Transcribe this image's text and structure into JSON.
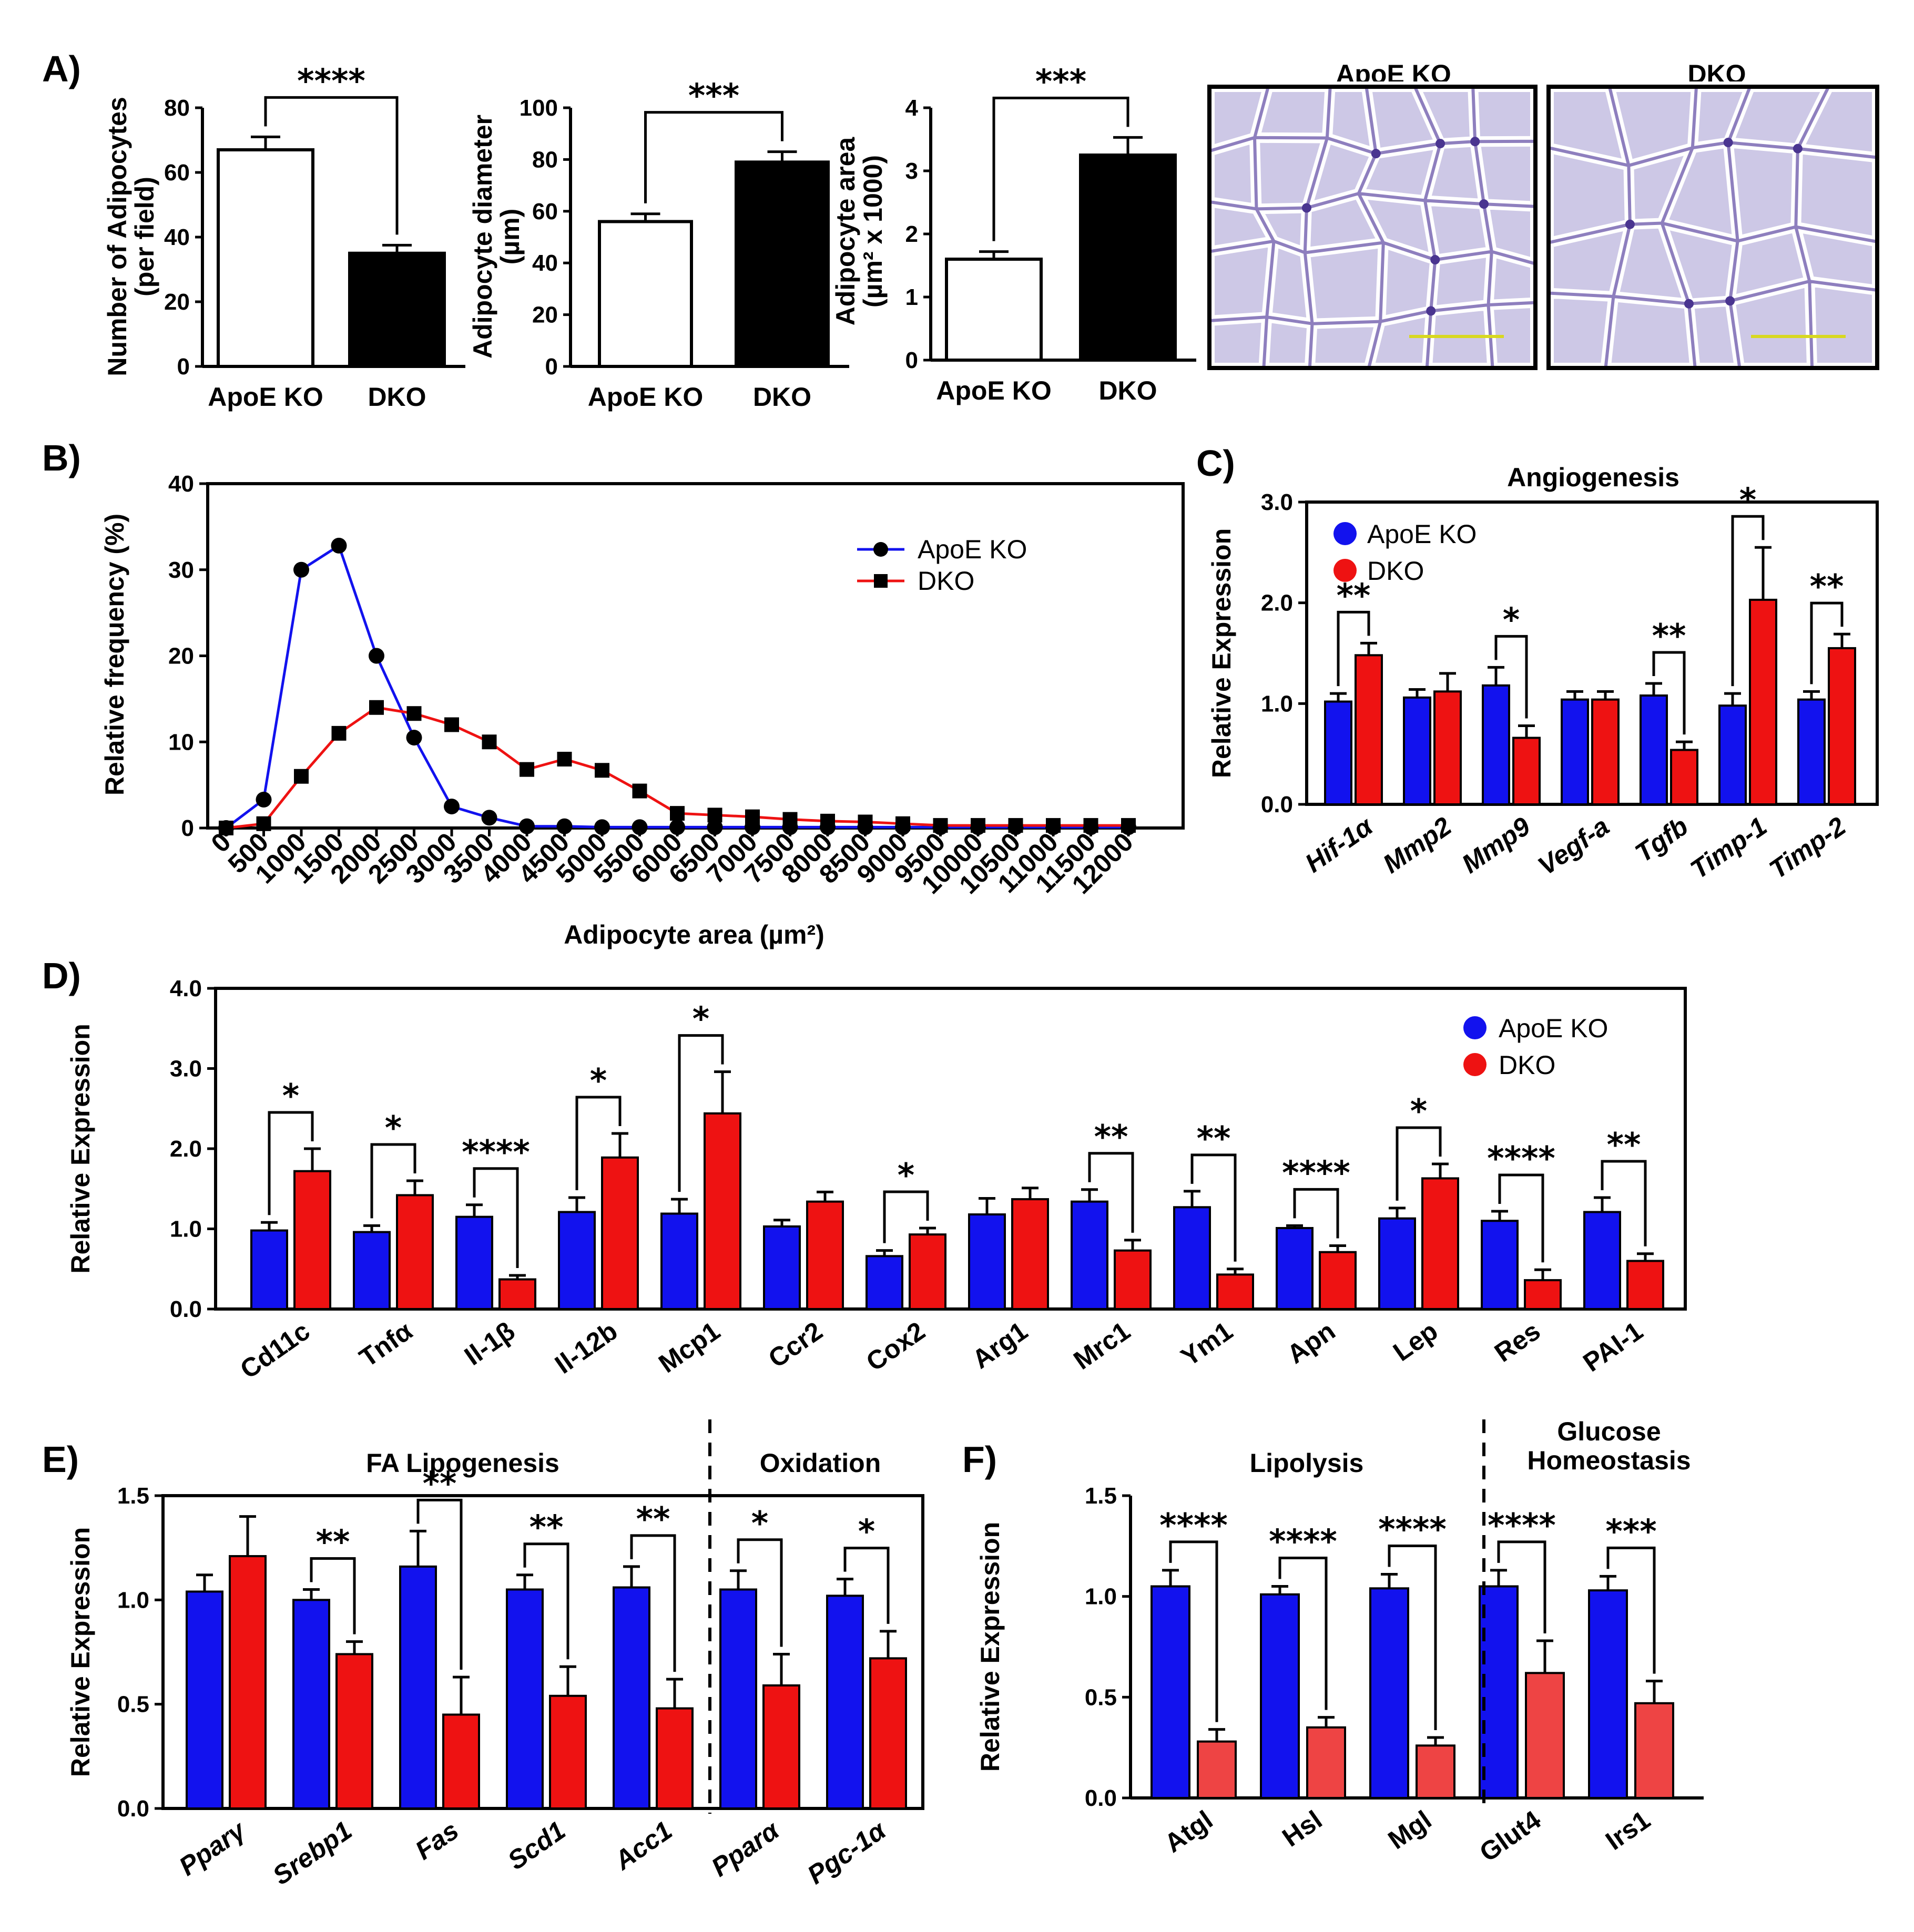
{
  "figure": {
    "labels": [
      "A)",
      "B)",
      "C)",
      "D)",
      "E)",
      "F)"
    ],
    "micrographs": [
      {
        "title": "ApoE KO",
        "description": "micrograph"
      },
      {
        "title": "DKO",
        "description": "micrograph"
      }
    ]
  },
  "colors": {
    "apoe": "#1212ee",
    "dko": "#ee1212",
    "dko_light": "#ee4444",
    "tissue": "#cdc8e6",
    "membrane": "#7a68b3"
  },
  "chart_data": [
    {
      "id": "A1",
      "type": "bar",
      "categories": [
        "ApoE KO",
        "DKO"
      ],
      "values": [
        67,
        35
      ],
      "errors": [
        4,
        2.5
      ],
      "ylabel": [
        "Number of Adipocytes",
        "(per field)"
      ],
      "ylim": [
        0,
        80
      ],
      "yticks": [
        "0",
        "20",
        "40",
        "60",
        "80"
      ],
      "bar_fills": [
        "#ffffff",
        "#000000"
      ],
      "significance": [
        {
          "label": "****"
        }
      ]
    },
    {
      "id": "A2",
      "type": "bar",
      "categories": [
        "ApoE KO",
        "DKO"
      ],
      "values": [
        56,
        79
      ],
      "errors": [
        3,
        4
      ],
      "ylabel": [
        "Adipocyte diameter",
        "(µm)"
      ],
      "ylim": [
        0,
        100
      ],
      "yticks": [
        "0",
        "20",
        "40",
        "60",
        "80",
        "100"
      ],
      "bar_fills": [
        "#ffffff",
        "#000000"
      ],
      "significance": [
        {
          "label": "***"
        }
      ]
    },
    {
      "id": "A3",
      "type": "bar",
      "categories": [
        "ApoE KO",
        "DKO"
      ],
      "values": [
        1.6,
        3.25
      ],
      "errors": [
        0.12,
        0.28
      ],
      "ylabel": [
        "Adipocyte area",
        "(µm² x 1000)"
      ],
      "ylim": [
        0,
        4
      ],
      "yticks": [
        "0",
        "1",
        "2",
        "3",
        "4"
      ],
      "bar_fills": [
        "#ffffff",
        "#000000"
      ],
      "significance": [
        {
          "label": "***"
        }
      ]
    },
    {
      "id": "B",
      "type": "line",
      "x": [
        0,
        500,
        1000,
        1500,
        2000,
        2500,
        3000,
        3500,
        4000,
        4500,
        5000,
        5500,
        6000,
        6500,
        7000,
        7500,
        8000,
        8500,
        9000,
        9500,
        10000,
        10500,
        11000,
        11500,
        12000
      ],
      "series": [
        {
          "name": "ApoE KO",
          "color": "#1212ee",
          "marker": "circle",
          "values": [
            0,
            3.3,
            30,
            32.8,
            20,
            10.5,
            2.5,
            1.2,
            0.2,
            0.2,
            0.1,
            0.1,
            0.1,
            0.1,
            0.1,
            0.1,
            0.1,
            0.1,
            0.1,
            0.1,
            0.1,
            0.1,
            0.1,
            0.1,
            0.1
          ]
        },
        {
          "name": "DKO",
          "color": "#ee1212",
          "marker": "square",
          "values": [
            0,
            0.5,
            6,
            11,
            14,
            13.3,
            12,
            10,
            6.8,
            8,
            6.7,
            4.3,
            1.7,
            1.5,
            1.3,
            1,
            0.8,
            0.7,
            0.5,
            0.3,
            0.3,
            0.3,
            0.3,
            0.3,
            0.3
          ]
        }
      ],
      "xlabel": "Adipocyte area (µm²)",
      "ylabel": "Relative frequency (%)",
      "ylim": [
        0,
        40
      ],
      "yticks": [
        "0",
        "10",
        "20",
        "30",
        "40"
      ],
      "xticks": [
        "0",
        "500",
        "1000",
        "1500",
        "2000",
        "2500",
        "3000",
        "3500",
        "4000",
        "4500",
        "5000",
        "5500",
        "6000",
        "6500",
        "7000",
        "7500",
        "8000",
        "8500",
        "9000",
        "9500",
        "10000",
        "10500",
        "11000",
        "11500",
        "12000"
      ],
      "legend": "top-right"
    },
    {
      "id": "C",
      "type": "bar",
      "title": "Angiogenesis",
      "categories": [
        "Hif-1α",
        "Mmp2",
        "Mmp9",
        "Vegf-a",
        "Tgfb",
        "Timp-1",
        "Timp-2"
      ],
      "series": [
        {
          "name": "ApoE KO",
          "color": "#1212ee",
          "values": [
            1.02,
            1.06,
            1.18,
            1.04,
            1.08,
            0.98,
            1.04
          ],
          "errors": [
            0.08,
            0.08,
            0.18,
            0.08,
            0.12,
            0.12,
            0.08
          ]
        },
        {
          "name": "DKO",
          "color": "#ee1212",
          "values": [
            1.48,
            1.12,
            0.66,
            1.04,
            0.54,
            2.03,
            1.55
          ],
          "errors": [
            0.12,
            0.18,
            0.12,
            0.08,
            0.08,
            0.52,
            0.14
          ]
        }
      ],
      "ylabel": "Relative Expression",
      "ylim": [
        0,
        3
      ],
      "yticks": [
        "0.0",
        "1.0",
        "2.0",
        "3.0"
      ],
      "significance": [
        {
          "cat": 0,
          "label": "**"
        },
        {
          "cat": 2,
          "label": "*"
        },
        {
          "cat": 4,
          "label": "**"
        },
        {
          "cat": 5,
          "label": "*"
        },
        {
          "cat": 6,
          "label": "**"
        }
      ],
      "legend": "top-left"
    },
    {
      "id": "D",
      "type": "bar",
      "categories": [
        "Cd11c",
        "Tnfα",
        "Il-1β",
        "Il-12b",
        "Mcp1",
        "Ccr2",
        "Cox2",
        "Arg1",
        "Mrc1",
        "Ym1",
        "Apn",
        "Lep",
        "Res",
        "PAI-1"
      ],
      "series": [
        {
          "name": "ApoE KO",
          "color": "#1212ee",
          "values": [
            0.98,
            0.96,
            1.15,
            1.21,
            1.19,
            1.03,
            0.66,
            1.18,
            1.34,
            1.27,
            1.01,
            1.13,
            1.1,
            1.21
          ],
          "errors": [
            0.1,
            0.08,
            0.15,
            0.18,
            0.18,
            0.08,
            0.07,
            0.2,
            0.15,
            0.2,
            0.03,
            0.13,
            0.12,
            0.18
          ]
        },
        {
          "name": "DKO",
          "color": "#ee1212",
          "values": [
            1.72,
            1.42,
            0.37,
            1.89,
            2.44,
            1.34,
            0.93,
            1.37,
            0.73,
            0.43,
            0.71,
            1.63,
            0.36,
            0.6
          ],
          "errors": [
            0.28,
            0.18,
            0.05,
            0.3,
            0.52,
            0.12,
            0.08,
            0.14,
            0.13,
            0.07,
            0.08,
            0.18,
            0.13,
            0.09
          ]
        }
      ],
      "ylabel": "Relative Expression",
      "ylim": [
        0,
        4
      ],
      "yticks": [
        "0.0",
        "1.0",
        "2.0",
        "3.0",
        "4.0"
      ],
      "significance": [
        {
          "cat": 0,
          "label": "*"
        },
        {
          "cat": 1,
          "label": "*"
        },
        {
          "cat": 2,
          "label": "****"
        },
        {
          "cat": 3,
          "label": "*"
        },
        {
          "cat": 4,
          "label": "*"
        },
        {
          "cat": 6,
          "label": "*"
        },
        {
          "cat": 8,
          "label": "**"
        },
        {
          "cat": 9,
          "label": "**"
        },
        {
          "cat": 10,
          "label": "****"
        },
        {
          "cat": 11,
          "label": "*"
        },
        {
          "cat": 12,
          "label": "****"
        },
        {
          "cat": 13,
          "label": "**"
        }
      ],
      "legend": "top-right"
    },
    {
      "id": "E",
      "type": "bar",
      "groups": [
        "FA Lipogenesis",
        "Oxidation"
      ],
      "categories": [
        "Pparγ",
        "Srebp1",
        "Fas",
        "Scd1",
        "Acc1",
        "Pparα",
        "Pgc-1α"
      ],
      "series": [
        {
          "name": "ApoE KO",
          "color": "#1212ee",
          "values": [
            1.04,
            1.0,
            1.16,
            1.05,
            1.06,
            1.05,
            1.02
          ],
          "errors": [
            0.08,
            0.05,
            0.17,
            0.07,
            0.1,
            0.09,
            0.08
          ]
        },
        {
          "name": "DKO",
          "color": "#ee1212",
          "values": [
            1.21,
            0.74,
            0.45,
            0.54,
            0.48,
            0.59,
            0.72
          ],
          "errors": [
            0.19,
            0.06,
            0.18,
            0.14,
            0.14,
            0.15,
            0.13
          ]
        }
      ],
      "ylabel": "Relative Expression",
      "ylim": [
        0,
        1.5
      ],
      "yticks": [
        "0.0",
        "0.5",
        "1.0",
        "1.5"
      ],
      "significance": [
        {
          "cat": 1,
          "label": "**"
        },
        {
          "cat": 2,
          "label": "**"
        },
        {
          "cat": 3,
          "label": "**"
        },
        {
          "cat": 4,
          "label": "**"
        },
        {
          "cat": 5,
          "label": "*"
        },
        {
          "cat": 6,
          "label": "*"
        }
      ]
    },
    {
      "id": "F",
      "type": "bar",
      "groups": [
        "Lipolysis",
        "Glucose",
        "Homeostasis"
      ],
      "categories": [
        "Atgl",
        "Hsl",
        "Mgl",
        "Glut4",
        "Irs1"
      ],
      "series": [
        {
          "name": "ApoE KO",
          "color": "#1212ee",
          "values": [
            1.05,
            1.01,
            1.04,
            1.05,
            1.03
          ],
          "errors": [
            0.08,
            0.04,
            0.07,
            0.08,
            0.07
          ]
        },
        {
          "name": "DKO",
          "color": "#ee4444",
          "values": [
            0.28,
            0.35,
            0.26,
            0.62,
            0.47
          ],
          "errors": [
            0.06,
            0.05,
            0.04,
            0.16,
            0.11
          ]
        }
      ],
      "ylabel": "Relative Expression",
      "ylim": [
        0,
        1.5
      ],
      "yticks": [
        "0.0",
        "0.5",
        "1.0",
        "1.5"
      ],
      "significance": [
        {
          "cat": 0,
          "label": "****"
        },
        {
          "cat": 1,
          "label": "****"
        },
        {
          "cat": 2,
          "label": "****"
        },
        {
          "cat": 3,
          "label": "****"
        },
        {
          "cat": 4,
          "label": "***"
        }
      ]
    }
  ]
}
